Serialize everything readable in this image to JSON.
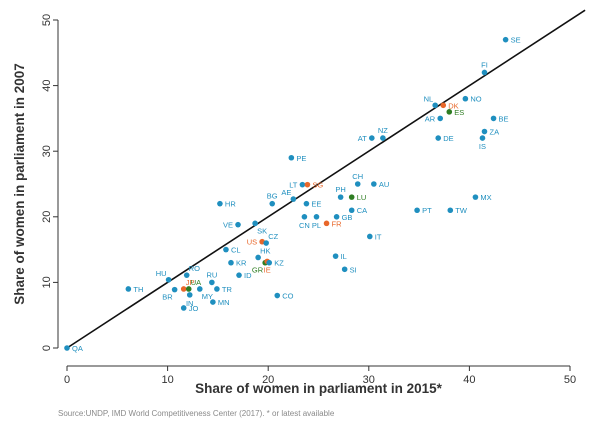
{
  "chart_data": {
    "type": "scatter",
    "xlabel": "Share of women in parliament in 2015*",
    "ylabel": "Share of women in parliament in 2007",
    "xlim": [
      0,
      50
    ],
    "ylim": [
      0,
      50
    ],
    "x_ticks": [
      0,
      10,
      20,
      30,
      40,
      50
    ],
    "y_ticks": [
      0,
      10,
      20,
      30,
      40,
      50
    ],
    "grid": false,
    "reference_line": "45-degree diagonal (y = x)",
    "source_note": "Source:UNDP, IMD World Competitiveness Center (2017). * or latest available",
    "colors": {
      "default": "#1f8fbf",
      "highlight_orange": "#e8672a",
      "highlight_green": "#2e7d22",
      "axis": "#333333",
      "line": "#111111"
    },
    "points": [
      {
        "label": "QA",
        "x": 0,
        "y": 0,
        "color": "default",
        "pos": "right"
      },
      {
        "label": "TH",
        "x": 6.1,
        "y": 9.0,
        "color": "default",
        "pos": "right"
      },
      {
        "label": "HU",
        "x": 10.1,
        "y": 10.4,
        "color": "default",
        "pos": "above-left"
      },
      {
        "label": "BR",
        "x": 10.7,
        "y": 8.9,
        "color": "default",
        "pos": "below-left"
      },
      {
        "label": "JP",
        "x": 11.6,
        "y": 9.0,
        "color": "orange",
        "pos": "above-right"
      },
      {
        "label": "UA",
        "x": 12.1,
        "y": 9.0,
        "color": "green",
        "pos": "above-right"
      },
      {
        "label": "RO",
        "x": 11.9,
        "y": 11.1,
        "color": "default",
        "pos": "above-right"
      },
      {
        "label": "IN",
        "x": 12.2,
        "y": 8.1,
        "color": "default",
        "pos": "below"
      },
      {
        "label": "MY",
        "x": 13.2,
        "y": 9.0,
        "color": "default",
        "pos": "below-right"
      },
      {
        "label": "JO",
        "x": 11.6,
        "y": 6.1,
        "color": "default",
        "pos": "right"
      },
      {
        "label": "RU",
        "x": 14.4,
        "y": 10.0,
        "color": "default",
        "pos": "above"
      },
      {
        "label": "TR",
        "x": 14.9,
        "y": 9.0,
        "color": "default",
        "pos": "right"
      },
      {
        "label": "MN",
        "x": 14.5,
        "y": 7.0,
        "color": "default",
        "pos": "right"
      },
      {
        "label": "ID",
        "x": 17.1,
        "y": 11.1,
        "color": "default",
        "pos": "right"
      },
      {
        "label": "KR",
        "x": 16.3,
        "y": 13.0,
        "color": "default",
        "pos": "right"
      },
      {
        "label": "CL",
        "x": 15.8,
        "y": 15.0,
        "color": "default",
        "pos": "right"
      },
      {
        "label": "HR",
        "x": 15.2,
        "y": 22.0,
        "color": "default",
        "pos": "right"
      },
      {
        "label": "VE",
        "x": 17.0,
        "y": 18.8,
        "color": "default",
        "pos": "left"
      },
      {
        "label": "SK",
        "x": 18.7,
        "y": 19.0,
        "color": "default",
        "pos": "below-right"
      },
      {
        "label": "BG",
        "x": 20.4,
        "y": 22.0,
        "color": "default",
        "pos": "above"
      },
      {
        "label": "US",
        "x": 19.4,
        "y": 16.2,
        "color": "orange",
        "pos": "left"
      },
      {
        "label": "CZ",
        "x": 19.8,
        "y": 16.0,
        "color": "default",
        "pos": "above-right"
      },
      {
        "label": "HK",
        "x": 19.0,
        "y": 13.8,
        "color": "default",
        "pos": "above-right"
      },
      {
        "label": "GR",
        "x": 19.7,
        "y": 13.0,
        "color": "green",
        "pos": "below-left"
      },
      {
        "label": "IE",
        "x": 19.9,
        "y": 13.2,
        "color": "orange",
        "pos": "below"
      },
      {
        "label": "KZ",
        "x": 20.1,
        "y": 13.0,
        "color": "default",
        "pos": "right"
      },
      {
        "label": "CO",
        "x": 20.9,
        "y": 8.0,
        "color": "default",
        "pos": "right"
      },
      {
        "label": "PE",
        "x": 22.3,
        "y": 29.0,
        "color": "default",
        "pos": "right"
      },
      {
        "label": "AE",
        "x": 22.5,
        "y": 22.7,
        "color": "default",
        "pos": "above-left"
      },
      {
        "label": "LT",
        "x": 23.4,
        "y": 24.9,
        "color": "default",
        "pos": "left"
      },
      {
        "label": "SG",
        "x": 23.9,
        "y": 24.9,
        "color": "orange",
        "pos": "right"
      },
      {
        "label": "EE",
        "x": 23.8,
        "y": 22.0,
        "color": "default",
        "pos": "right"
      },
      {
        "label": "CN",
        "x": 23.6,
        "y": 20.0,
        "color": "default",
        "pos": "below"
      },
      {
        "label": "PL",
        "x": 24.8,
        "y": 20.0,
        "color": "default",
        "pos": "below"
      },
      {
        "label": "FR",
        "x": 25.8,
        "y": 19.0,
        "color": "orange",
        "pos": "right"
      },
      {
        "label": "IL",
        "x": 26.7,
        "y": 14.0,
        "color": "default",
        "pos": "right"
      },
      {
        "label": "SI",
        "x": 27.6,
        "y": 12.0,
        "color": "default",
        "pos": "right"
      },
      {
        "label": "GB",
        "x": 26.8,
        "y": 20.0,
        "color": "default",
        "pos": "right"
      },
      {
        "label": "PH",
        "x": 27.2,
        "y": 23.0,
        "color": "default",
        "pos": "above"
      },
      {
        "label": "LU",
        "x": 28.3,
        "y": 23.0,
        "color": "green",
        "pos": "right"
      },
      {
        "label": "CA",
        "x": 28.3,
        "y": 21.0,
        "color": "default",
        "pos": "right"
      },
      {
        "label": "CH",
        "x": 28.9,
        "y": 25.0,
        "color": "default",
        "pos": "above"
      },
      {
        "label": "AU",
        "x": 30.5,
        "y": 25.0,
        "color": "default",
        "pos": "right"
      },
      {
        "label": "IT",
        "x": 30.1,
        "y": 17.0,
        "color": "default",
        "pos": "right"
      },
      {
        "label": "AT",
        "x": 30.3,
        "y": 32.0,
        "color": "default",
        "pos": "left"
      },
      {
        "label": "NZ",
        "x": 31.4,
        "y": 32.0,
        "color": "default",
        "pos": "above"
      },
      {
        "label": "PT",
        "x": 34.8,
        "y": 21.0,
        "color": "default",
        "pos": "right"
      },
      {
        "label": "TW",
        "x": 38.1,
        "y": 21.0,
        "color": "default",
        "pos": "right"
      },
      {
        "label": "NL",
        "x": 36.6,
        "y": 37.0,
        "color": "default",
        "pos": "above-left"
      },
      {
        "label": "DK",
        "x": 37.4,
        "y": 37.0,
        "color": "orange",
        "pos": "right"
      },
      {
        "label": "ES",
        "x": 38.0,
        "y": 36.0,
        "color": "green",
        "pos": "right"
      },
      {
        "label": "AR",
        "x": 37.1,
        "y": 35.0,
        "color": "default",
        "pos": "left"
      },
      {
        "label": "NO",
        "x": 39.6,
        "y": 38.0,
        "color": "default",
        "pos": "right"
      },
      {
        "label": "DE",
        "x": 36.9,
        "y": 32.0,
        "color": "default",
        "pos": "right"
      },
      {
        "label": "BE",
        "x": 42.4,
        "y": 35.0,
        "color": "default",
        "pos": "right"
      },
      {
        "label": "ZA",
        "x": 41.5,
        "y": 33.0,
        "color": "default",
        "pos": "right"
      },
      {
        "label": "IS",
        "x": 41.3,
        "y": 32.0,
        "color": "default",
        "pos": "below"
      },
      {
        "label": "MX",
        "x": 40.6,
        "y": 23.0,
        "color": "default",
        "pos": "right"
      },
      {
        "label": "FI",
        "x": 41.5,
        "y": 42.0,
        "color": "default",
        "pos": "above"
      },
      {
        "label": "SE",
        "x": 43.6,
        "y": 47.0,
        "color": "default",
        "pos": "right"
      }
    ]
  }
}
